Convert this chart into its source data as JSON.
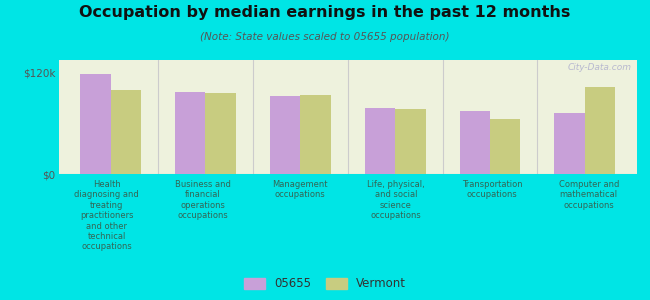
{
  "title": "Occupation by median earnings in the past 12 months",
  "subtitle": "(Note: State values scaled to 05655 population)",
  "categories": [
    "Health\ndiagnosing and\ntreating\npractitioners\nand other\ntechnical\noccupations",
    "Business and\nfinancial\noperations\noccupations",
    "Management\noccupations",
    "Life, physical,\nand social\nscience\noccupations",
    "Transportation\noccupations",
    "Computer and\nmathematical\noccupations"
  ],
  "values_05655": [
    118000,
    97000,
    92000,
    78000,
    75000,
    72000
  ],
  "values_vermont": [
    100000,
    96000,
    94000,
    77000,
    65000,
    103000
  ],
  "ylim": [
    0,
    135000
  ],
  "yticks": [
    0,
    120000
  ],
  "ytick_labels": [
    "$0",
    "$120k"
  ],
  "bar_color_05655": "#c8a0d8",
  "bar_color_vermont": "#c8cc80",
  "background_color": "#00e5e5",
  "plot_bg_color": "#eef2dd",
  "legend_labels": [
    "05655",
    "Vermont"
  ],
  "watermark": "City-Data.com",
  "bar_width": 0.32,
  "label_color": "#336655",
  "ytick_color": "#555555"
}
